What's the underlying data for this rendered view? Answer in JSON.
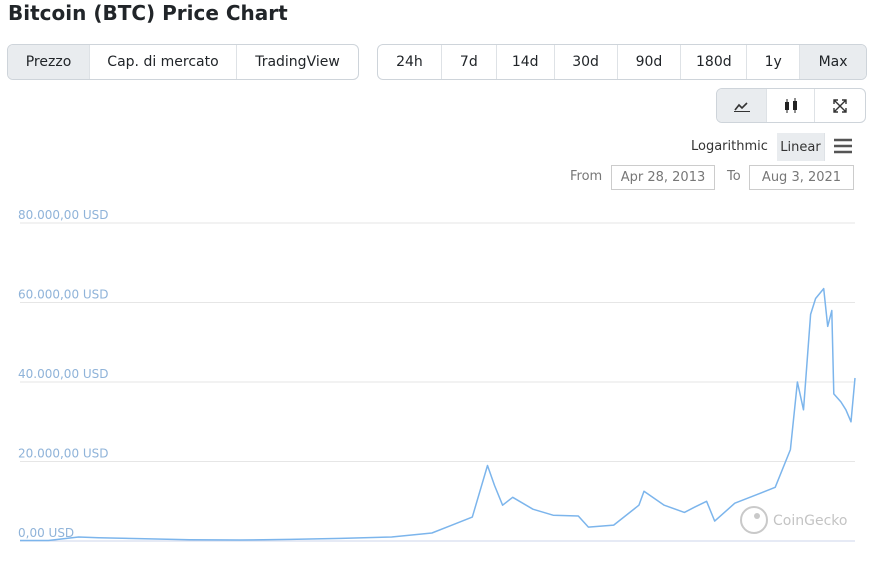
{
  "chart_data": {
    "type": "line",
    "title": "Bitcoin (BTC) Price Chart",
    "color": "#7cb5ec",
    "grid": true,
    "x": [
      2013.32,
      2013.6,
      2013.9,
      2014.1,
      2014.5,
      2015.0,
      2015.5,
      2016.0,
      2016.5,
      2017.0,
      2017.4,
      2017.6,
      2017.8,
      2017.95,
      2018.02,
      2018.1,
      2018.2,
      2018.4,
      2018.6,
      2018.85,
      2018.95,
      2019.2,
      2019.45,
      2019.5,
      2019.7,
      2019.9,
      2020.0,
      2020.12,
      2020.2,
      2020.4,
      2020.6,
      2020.8,
      2020.95,
      2021.02,
      2021.08,
      2021.15,
      2021.2,
      2021.28,
      2021.32,
      2021.36,
      2021.38,
      2021.45,
      2021.5,
      2021.55,
      2021.59
    ],
    "values": [
      130,
      120,
      1000,
      800,
      600,
      300,
      250,
      400,
      650,
      1000,
      2000,
      4000,
      6000,
      19000,
      14000,
      9000,
      11000,
      8000,
      6500,
      6300,
      3500,
      4000,
      9000,
      12500,
      9000,
      7200,
      8500,
      10000,
      5000,
      9500,
      11500,
      13500,
      23000,
      40000,
      33000,
      57000,
      61000,
      63500,
      54000,
      58000,
      37000,
      35000,
      33000,
      30000,
      41000
    ],
    "xlim": [
      2013.32,
      2021.59
    ],
    "ylim": [
      0,
      80000
    ],
    "yticks": [
      {
        "value": 0,
        "label": "0,00 USD"
      },
      {
        "value": 20000,
        "label": "20.000,00 USD"
      },
      {
        "value": 40000,
        "label": "40.000,00 USD"
      },
      {
        "value": 60000,
        "label": "60.000,00 USD"
      },
      {
        "value": 80000,
        "label": "80.000,00 USD"
      }
    ]
  },
  "ui": {
    "tabs": [
      "Prezzo",
      "Cap. di mercato",
      "TradingView"
    ],
    "ranges": [
      "24h",
      "7d",
      "14d",
      "30d",
      "90d",
      "180d",
      "1y",
      "Max"
    ],
    "scales": [
      "Logarithmic",
      "Linear"
    ],
    "from_label": "From",
    "from": "Apr 28, 2013",
    "to_label": "To",
    "to": "Aug 3, 2021",
    "watermark": "CoinGecko"
  }
}
